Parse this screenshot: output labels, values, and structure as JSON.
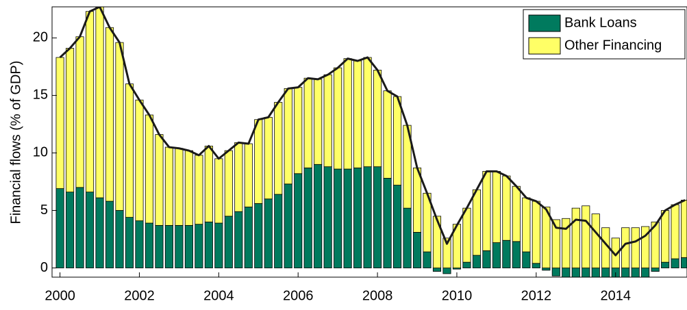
{
  "chart_data": {
    "type": "stacked-bar-with-total-line",
    "ylabel": "Financial flows (% of GDP)",
    "x": [
      2000,
      2000.25,
      2000.5,
      2000.75,
      2001,
      2001.25,
      2001.5,
      2001.75,
      2002,
      2002.25,
      2002.5,
      2002.75,
      2003,
      2003.25,
      2003.5,
      2003.75,
      2004,
      2004.25,
      2004.5,
      2004.75,
      2005,
      2005.25,
      2005.5,
      2005.75,
      2006,
      2006.25,
      2006.5,
      2006.75,
      2007,
      2007.25,
      2007.5,
      2007.75,
      2008,
      2008.25,
      2008.5,
      2008.75,
      2009,
      2009.25,
      2009.5,
      2009.75,
      2010,
      2010.25,
      2010.5,
      2010.75,
      2011,
      2011.25,
      2011.5,
      2011.75,
      2012,
      2012.25,
      2012.5,
      2012.75,
      2013,
      2013.25,
      2013.5,
      2013.75,
      2014,
      2014.25,
      2014.5,
      2014.75,
      2015,
      2015.25,
      2015.5,
      2015.75
    ],
    "series": [
      {
        "name": "Bank Loans",
        "color": "#007a5e",
        "values": [
          6.9,
          6.6,
          7.0,
          6.6,
          6.1,
          5.8,
          5.0,
          4.4,
          4.1,
          3.9,
          3.7,
          3.7,
          3.7,
          3.7,
          3.8,
          4.0,
          3.9,
          4.5,
          4.9,
          5.3,
          5.6,
          6.0,
          6.4,
          7.3,
          8.2,
          8.7,
          9.0,
          8.8,
          8.6,
          8.6,
          8.7,
          8.8,
          8.8,
          7.8,
          7.2,
          5.2,
          3.1,
          1.4,
          -0.3,
          -0.5,
          -0.1,
          0.5,
          1.1,
          1.5,
          2.2,
          2.4,
          2.3,
          1.4,
          0.4,
          -0.2,
          -0.7,
          -0.9,
          -1.0,
          -1.3,
          -1.6,
          -1.4,
          -1.5,
          -1.4,
          -1.2,
          -0.8,
          -0.3,
          0.5,
          0.8,
          0.9
        ]
      },
      {
        "name": "Other Financing",
        "color": "#ffff66",
        "values": [
          11.4,
          12.5,
          13.1,
          15.7,
          16.6,
          15.1,
          14.6,
          11.6,
          10.5,
          9.4,
          7.9,
          6.8,
          6.7,
          6.5,
          6.0,
          6.6,
          5.6,
          5.7,
          6.0,
          5.5,
          7.3,
          7.1,
          8.0,
          8.3,
          7.5,
          7.8,
          7.4,
          8.0,
          8.8,
          9.6,
          9.3,
          9.5,
          8.4,
          7.6,
          7.7,
          7.2,
          5.6,
          5.1,
          4.5,
          2.6,
          3.8,
          4.7,
          5.7,
          6.9,
          6.2,
          5.6,
          4.8,
          4.7,
          5.4,
          5.3,
          4.2,
          4.3,
          5.2,
          5.4,
          4.7,
          3.5,
          2.6,
          3.5,
          3.5,
          3.6,
          4.0,
          4.5,
          4.7,
          5.0
        ]
      }
    ],
    "total_line_color": "#1a1a1a",
    "xlim": [
      1999.8,
      2015.8
    ],
    "xticks": [
      2000,
      2002,
      2004,
      2006,
      2008,
      2010,
      2012,
      2014
    ],
    "ylim": [
      -0.8,
      22.7
    ],
    "yticks": [
      0,
      5,
      10,
      15,
      20
    ],
    "legend": "top-right"
  }
}
